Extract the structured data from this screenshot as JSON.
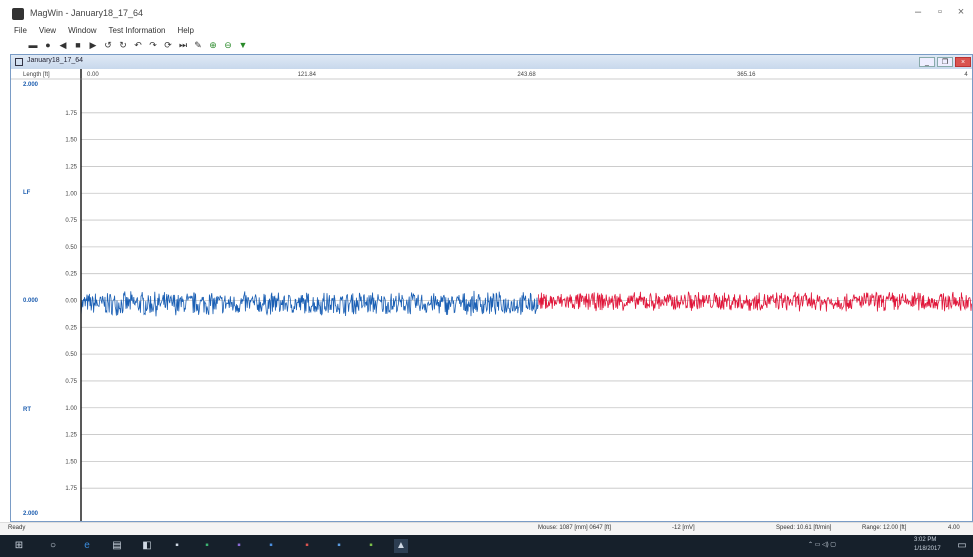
{
  "window": {
    "title": "MagWin - January18_17_64"
  },
  "menu": {
    "items": [
      "File",
      "View",
      "Window",
      "Test Information",
      "Help"
    ]
  },
  "mdi": {
    "title": "January18_17_64"
  },
  "chart_data": {
    "type": "line",
    "title": "",
    "xlabel": "Length [ft]",
    "x_ticks": [
      "0.00",
      "121.84",
      "243.68",
      "365.16",
      "4"
    ],
    "left_labels": {
      "top": "2.000",
      "lf": "LF",
      "mid": "0.000",
      "rt": "RT",
      "bottom": "2.000"
    },
    "y_ticks": [
      "1.75",
      "1.50",
      "1.25",
      "1.00",
      "0.75",
      "0.50",
      "0.25",
      "0.00",
      "0.25",
      "0.50",
      "0.75",
      "1.00",
      "1.25",
      "1.50",
      "1.75"
    ],
    "xlim": [
      0,
      487
    ],
    "ylim": [
      -2,
      2
    ],
    "grid": true,
    "series": [
      {
        "color": "#1a5fb4",
        "x_range": [
          0,
          250
        ],
        "mean": -0.03,
        "noise": 0.12
      },
      {
        "color": "#e0163a",
        "x_range": [
          250,
          487
        ],
        "mean": -0.01,
        "noise": 0.1
      }
    ]
  },
  "status": {
    "ready": "Ready",
    "mouse": "Mouse: 1087 [mm] 0647 [ft]",
    "field": "-12 [mV]",
    "speed": "Speed: 10.61 [ft/min]",
    "range": "Range: 12.00 [ft]",
    "end": "4.00"
  },
  "taskbar": {
    "time": "3:02 PM",
    "date": "1/18/2017"
  }
}
